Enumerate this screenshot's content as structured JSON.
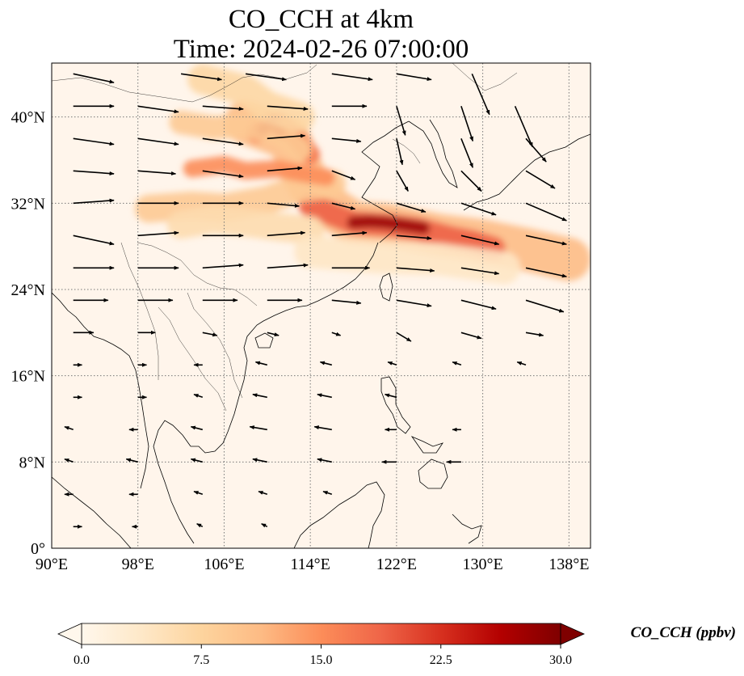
{
  "title": {
    "line1": "CO_CCH at 4km",
    "line2": "Time: 2024-02-26 07:00:00"
  },
  "map": {
    "projection": "PlateCarree",
    "lon_range": [
      90,
      140
    ],
    "lat_range": [
      0,
      45
    ],
    "lon_ticks": [
      {
        "value": 90,
        "label": "90°E"
      },
      {
        "value": 98,
        "label": "98°E"
      },
      {
        "value": 106,
        "label": "106°E"
      },
      {
        "value": 114,
        "label": "114°E"
      },
      {
        "value": 122,
        "label": "122°E"
      },
      {
        "value": 130,
        "label": "130°E"
      },
      {
        "value": 138,
        "label": "138°E"
      }
    ],
    "lat_ticks": [
      {
        "value": 0,
        "label": "0°"
      },
      {
        "value": 8,
        "label": "8°N"
      },
      {
        "value": 16,
        "label": "16°N"
      },
      {
        "value": 24,
        "label": "24°N"
      },
      {
        "value": 32,
        "label": "32°N"
      },
      {
        "value": 40,
        "label": "40°N"
      }
    ],
    "gridlines": "dotted",
    "background_color": "#fff5eb",
    "coastline_color": "#000000",
    "field": {
      "name": "CO_CCH",
      "units": "ppbv",
      "plumes": [
        {
          "lon": [
            108,
            112,
            113,
            114,
            116,
            118,
            121,
            123,
            126,
            130,
            134,
            138
          ],
          "lat": [
            39.5,
            38.0,
            35.5,
            33.5,
            31.5,
            30.2,
            30.0,
            29.6,
            29.0,
            28.5,
            27.7,
            26.8
          ],
          "value": 11,
          "width_deg": 4.0
        },
        {
          "lon": [
            114,
            116,
            118,
            121,
            124,
            127,
            129,
            131
          ],
          "lat": [
            31.8,
            31.0,
            30.2,
            30.0,
            29.6,
            28.8,
            28.4,
            27.8
          ],
          "value": 19,
          "width_deg": 2.2
        },
        {
          "lon": [
            118,
            119.5,
            121,
            122.5,
            124.5
          ],
          "lat": [
            30.2,
            30.3,
            30.2,
            30.0,
            29.7
          ],
          "value": 28,
          "width_deg": 1.2
        },
        {
          "lon": [
            109,
            110,
            111,
            112.5,
            114
          ],
          "lat": [
            38.5,
            39.3,
            39.5,
            38.3,
            36.5
          ],
          "value": 17,
          "width_deg": 1.8
        },
        {
          "lon": [
            109.5,
            110.5,
            111.2
          ],
          "lat": [
            38.8,
            39.6,
            38.6
          ],
          "value": 26,
          "width_deg": 1.0
        },
        {
          "lon": [
            99,
            103,
            106,
            110,
            113,
            116
          ],
          "lat": [
            31.5,
            31.8,
            31.6,
            32.3,
            33.4,
            33.8
          ],
          "value": 9,
          "width_deg": 2.6
        },
        {
          "lon": [
            103,
            106,
            108,
            111,
            113,
            115.5
          ],
          "lat": [
            35.2,
            35.6,
            35.0,
            35.2,
            34.8,
            34.4
          ],
          "value": 15,
          "width_deg": 1.6
        },
        {
          "lon": [
            102,
            105,
            108,
            111,
            113
          ],
          "lat": [
            39.5,
            39.0,
            39.2,
            38.5,
            37.0
          ],
          "value": 9,
          "width_deg": 2.2
        },
        {
          "lon": [
            104,
            108,
            110,
            113
          ],
          "lat": [
            43.5,
            42.5,
            41.0,
            40.0
          ],
          "value": 7,
          "width_deg": 2.8
        },
        {
          "lon": [
            102,
            105,
            108,
            111,
            114
          ],
          "lat": [
            30.0,
            30.5,
            30.2,
            29.8,
            29.5
          ],
          "value": 6,
          "width_deg": 2.6
        },
        {
          "lon": [
            114,
            120,
            126,
            132
          ],
          "lat": [
            27.5,
            27.0,
            26.8,
            26.0
          ],
          "value": 4,
          "width_deg": 3.0
        }
      ]
    },
    "wind_vectors": [
      {
        "lon": 92,
        "lat": 44,
        "u": 14,
        "v": -3
      },
      {
        "lon": 102,
        "lat": 44,
        "u": 14,
        "v": -2
      },
      {
        "lon": 108,
        "lat": 44,
        "u": 14,
        "v": -2
      },
      {
        "lon": 116,
        "lat": 44,
        "u": 14,
        "v": -2
      },
      {
        "lon": 122,
        "lat": 44,
        "u": 12,
        "v": -2
      },
      {
        "lon": 129,
        "lat": 44,
        "u": 6,
        "v": -14
      },
      {
        "lon": 92,
        "lat": 41,
        "u": 14,
        "v": 0
      },
      {
        "lon": 98,
        "lat": 41,
        "u": 14,
        "v": -2
      },
      {
        "lon": 104,
        "lat": 41,
        "u": 14,
        "v": -1
      },
      {
        "lon": 110,
        "lat": 41,
        "u": 14,
        "v": -1
      },
      {
        "lon": 116,
        "lat": 41,
        "u": 12,
        "v": 0
      },
      {
        "lon": 122,
        "lat": 41,
        "u": 3,
        "v": -10
      },
      {
        "lon": 128,
        "lat": 41,
        "u": 4,
        "v": -12
      },
      {
        "lon": 133,
        "lat": 41,
        "u": 6,
        "v": -14
      },
      {
        "lon": 92,
        "lat": 38,
        "u": 14,
        "v": -2
      },
      {
        "lon": 98,
        "lat": 38,
        "u": 14,
        "v": -2
      },
      {
        "lon": 104,
        "lat": 38,
        "u": 14,
        "v": -2
      },
      {
        "lon": 110,
        "lat": 38,
        "u": 13,
        "v": 1
      },
      {
        "lon": 116,
        "lat": 38,
        "u": 10,
        "v": -1
      },
      {
        "lon": 122,
        "lat": 38,
        "u": 2,
        "v": -9
      },
      {
        "lon": 128,
        "lat": 38,
        "u": 4,
        "v": -10
      },
      {
        "lon": 134,
        "lat": 38,
        "u": 7,
        "v": -8
      },
      {
        "lon": 92,
        "lat": 35,
        "u": 14,
        "v": -1
      },
      {
        "lon": 98,
        "lat": 35,
        "u": 13,
        "v": -1
      },
      {
        "lon": 104,
        "lat": 35,
        "u": 14,
        "v": -2
      },
      {
        "lon": 110,
        "lat": 35,
        "u": 12,
        "v": 1
      },
      {
        "lon": 116,
        "lat": 35,
        "u": 8,
        "v": -3
      },
      {
        "lon": 122,
        "lat": 35,
        "u": 4,
        "v": -7
      },
      {
        "lon": 128,
        "lat": 35,
        "u": 7,
        "v": -7
      },
      {
        "lon": 134,
        "lat": 35,
        "u": 10,
        "v": -6
      },
      {
        "lon": 92,
        "lat": 32,
        "u": 14,
        "v": 1
      },
      {
        "lon": 98,
        "lat": 32,
        "u": 14,
        "v": 0
      },
      {
        "lon": 104,
        "lat": 32,
        "u": 14,
        "v": 0
      },
      {
        "lon": 110,
        "lat": 32,
        "u": 11,
        "v": -1
      },
      {
        "lon": 116,
        "lat": 32,
        "u": 8,
        "v": -2
      },
      {
        "lon": 122,
        "lat": 32,
        "u": 10,
        "v": -3
      },
      {
        "lon": 128,
        "lat": 32,
        "u": 12,
        "v": -4
      },
      {
        "lon": 134,
        "lat": 32,
        "u": 14,
        "v": -6
      },
      {
        "lon": 92,
        "lat": 29,
        "u": 14,
        "v": -3
      },
      {
        "lon": 98,
        "lat": 29,
        "u": 14,
        "v": 1
      },
      {
        "lon": 104,
        "lat": 29,
        "u": 14,
        "v": 0
      },
      {
        "lon": 110,
        "lat": 29,
        "u": 13,
        "v": 1
      },
      {
        "lon": 116,
        "lat": 29,
        "u": 12,
        "v": 1
      },
      {
        "lon": 122,
        "lat": 29,
        "u": 12,
        "v": -1
      },
      {
        "lon": 128,
        "lat": 29,
        "u": 13,
        "v": -3
      },
      {
        "lon": 134,
        "lat": 29,
        "u": 14,
        "v": -3
      },
      {
        "lon": 92,
        "lat": 26,
        "u": 14,
        "v": 0
      },
      {
        "lon": 98,
        "lat": 26,
        "u": 14,
        "v": 0
      },
      {
        "lon": 104,
        "lat": 26,
        "u": 14,
        "v": 1
      },
      {
        "lon": 110,
        "lat": 26,
        "u": 14,
        "v": 1
      },
      {
        "lon": 116,
        "lat": 26,
        "u": 13,
        "v": 0
      },
      {
        "lon": 122,
        "lat": 26,
        "u": 13,
        "v": -1
      },
      {
        "lon": 128,
        "lat": 26,
        "u": 13,
        "v": -2
      },
      {
        "lon": 134,
        "lat": 26,
        "u": 14,
        "v": -3
      },
      {
        "lon": 92,
        "lat": 23,
        "u": 12,
        "v": 0
      },
      {
        "lon": 98,
        "lat": 23,
        "u": 12,
        "v": 0
      },
      {
        "lon": 104,
        "lat": 23,
        "u": 12,
        "v": 0
      },
      {
        "lon": 110,
        "lat": 23,
        "u": 12,
        "v": 0
      },
      {
        "lon": 116,
        "lat": 23,
        "u": 10,
        "v": -1
      },
      {
        "lon": 122,
        "lat": 23,
        "u": 12,
        "v": -2
      },
      {
        "lon": 128,
        "lat": 23,
        "u": 12,
        "v": -3
      },
      {
        "lon": 134,
        "lat": 23,
        "u": 13,
        "v": -4
      },
      {
        "lon": 92,
        "lat": 20,
        "u": 7,
        "v": 0
      },
      {
        "lon": 98,
        "lat": 20,
        "u": 6,
        "v": 0
      },
      {
        "lon": 104,
        "lat": 20,
        "u": 5,
        "v": -1
      },
      {
        "lon": 110,
        "lat": 20,
        "u": 4,
        "v": -1
      },
      {
        "lon": 116,
        "lat": 20,
        "u": 3,
        "v": -1
      },
      {
        "lon": 122,
        "lat": 20,
        "u": 5,
        "v": -3
      },
      {
        "lon": 128,
        "lat": 20,
        "u": 7,
        "v": -2
      },
      {
        "lon": 134,
        "lat": 20,
        "u": 6,
        "v": -1
      },
      {
        "lon": 92,
        "lat": 17,
        "u": 3,
        "v": 0
      },
      {
        "lon": 98,
        "lat": 17,
        "u": 3,
        "v": 0
      },
      {
        "lon": 104,
        "lat": 17,
        "u": -3,
        "v": 0
      },
      {
        "lon": 110,
        "lat": 17,
        "u": -4,
        "v": 1
      },
      {
        "lon": 116,
        "lat": 17,
        "u": -4,
        "v": 1
      },
      {
        "lon": 122,
        "lat": 17,
        "u": -3,
        "v": 1
      },
      {
        "lon": 128,
        "lat": 17,
        "u": -3,
        "v": 1
      },
      {
        "lon": 134,
        "lat": 17,
        "u": -3,
        "v": 1
      },
      {
        "lon": 92,
        "lat": 14,
        "u": 3,
        "v": 0
      },
      {
        "lon": 98,
        "lat": 14,
        "u": 3,
        "v": 0
      },
      {
        "lon": 104,
        "lat": 14,
        "u": -3,
        "v": 1
      },
      {
        "lon": 110,
        "lat": 14,
        "u": -5,
        "v": 1
      },
      {
        "lon": 116,
        "lat": 14,
        "u": -5,
        "v": 1
      },
      {
        "lon": 122,
        "lat": 14,
        "u": -4,
        "v": 1
      },
      {
        "lon": 92,
        "lat": 11,
        "u": -3,
        "v": 1
      },
      {
        "lon": 98,
        "lat": 11,
        "u": -3,
        "v": 0
      },
      {
        "lon": 104,
        "lat": 11,
        "u": -4,
        "v": 1
      },
      {
        "lon": 110,
        "lat": 11,
        "u": -6,
        "v": 1
      },
      {
        "lon": 116,
        "lat": 11,
        "u": -6,
        "v": 1
      },
      {
        "lon": 122,
        "lat": 11,
        "u": -4,
        "v": 0
      },
      {
        "lon": 128,
        "lat": 11,
        "u": -3,
        "v": 0
      },
      {
        "lon": 92,
        "lat": 8,
        "u": -3,
        "v": 1
      },
      {
        "lon": 98,
        "lat": 8,
        "u": -4,
        "v": 1
      },
      {
        "lon": 104,
        "lat": 8,
        "u": -4,
        "v": 1
      },
      {
        "lon": 110,
        "lat": 8,
        "u": -5,
        "v": 1
      },
      {
        "lon": 116,
        "lat": 8,
        "u": -5,
        "v": 1
      },
      {
        "lon": 122,
        "lat": 8,
        "u": -5,
        "v": 0
      },
      {
        "lon": 128,
        "lat": 8,
        "u": -5,
        "v": 0
      },
      {
        "lon": 92,
        "lat": 5,
        "u": -3,
        "v": 0
      },
      {
        "lon": 98,
        "lat": 5,
        "u": -3,
        "v": 0
      },
      {
        "lon": 104,
        "lat": 5,
        "u": -3,
        "v": 1
      },
      {
        "lon": 110,
        "lat": 5,
        "u": -3,
        "v": 1
      },
      {
        "lon": 116,
        "lat": 5,
        "u": -3,
        "v": 1
      },
      {
        "lon": 92,
        "lat": 2,
        "u": 3,
        "v": 0
      },
      {
        "lon": 98,
        "lat": 2,
        "u": -2,
        "v": 0
      },
      {
        "lon": 104,
        "lat": 2,
        "u": -2,
        "v": 1
      },
      {
        "lon": 110,
        "lat": 2,
        "u": -2,
        "v": 1
      }
    ]
  },
  "colorbar": {
    "label": "CO_CCH (ppbv)",
    "vmin": 0,
    "vmax": 30,
    "ticks": [
      {
        "value": 0,
        "label": "0.0"
      },
      {
        "value": 7.5,
        "label": "7.5"
      },
      {
        "value": 15,
        "label": "15.0"
      },
      {
        "value": 22.5,
        "label": "22.5"
      },
      {
        "value": 30,
        "label": "30.0"
      }
    ],
    "colormap": "OrRd",
    "stops": [
      "#fff7ec",
      "#fee8c8",
      "#fdd49e",
      "#fdbb84",
      "#fc8d59",
      "#ef6548",
      "#d7301f",
      "#b30000",
      "#7f0000"
    ],
    "extend": "both"
  }
}
